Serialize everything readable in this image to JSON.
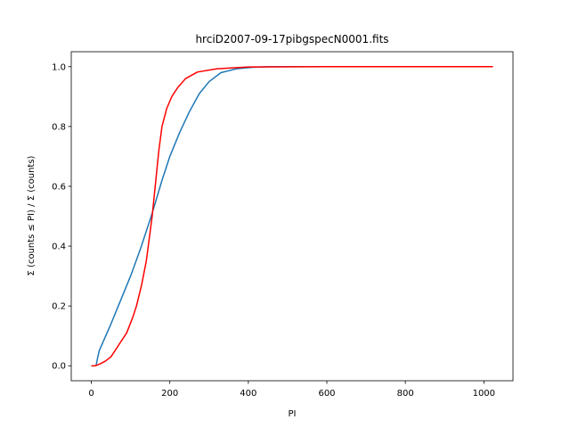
{
  "chart_data": {
    "type": "line",
    "title": "hrciD2007-09-17pibgspecN0001.fits",
    "x_label": "PI",
    "y_label": "Σ (counts  ≤ PI) / Σ (counts)",
    "series": [
      {
        "color": "#1f77b4",
        "x": [
          12,
          15,
          20,
          30,
          50,
          75,
          100,
          125,
          155,
          180,
          200,
          225,
          250,
          275,
          300,
          330,
          370,
          410,
          450,
          600,
          800,
          1023
        ],
        "values": [
          0,
          0.02,
          0.05,
          0.08,
          0.14,
          0.22,
          0.3,
          0.39,
          0.51,
          0.62,
          0.7,
          0.78,
          0.85,
          0.91,
          0.95,
          0.98,
          0.993,
          0.998,
          1.0,
          1.0,
          1.0,
          1.0
        ]
      },
      {
        "color": "#ff0000",
        "x": [
          0,
          10,
          20,
          35,
          50,
          70,
          90,
          105,
          115,
          128,
          140,
          155,
          165,
          172,
          180,
          192,
          205,
          220,
          240,
          270,
          320,
          400,
          600,
          800,
          1023
        ],
        "values": [
          0,
          0,
          0.005,
          0.015,
          0.03,
          0.07,
          0.11,
          0.16,
          0.2,
          0.27,
          0.35,
          0.5,
          0.63,
          0.72,
          0.8,
          0.86,
          0.9,
          0.93,
          0.96,
          0.982,
          0.993,
          0.999,
          1.0,
          1.0,
          1.0
        ]
      }
    ],
    "xlim": [
      -51.15,
      1074.15
    ],
    "xticks": [
      0,
      200,
      400,
      600,
      800,
      1000
    ],
    "ylim": [
      -0.05,
      1.05
    ],
    "yticks": [
      {
        "value": 0,
        "label": "0.0"
      },
      {
        "value": 0.2,
        "label": "0.2"
      },
      {
        "value": 0.4,
        "label": "0.4"
      },
      {
        "value": 0.6,
        "label": "0.6"
      },
      {
        "value": 0.8,
        "label": "0.8"
      },
      {
        "value": 1,
        "label": "1.0"
      }
    ]
  }
}
